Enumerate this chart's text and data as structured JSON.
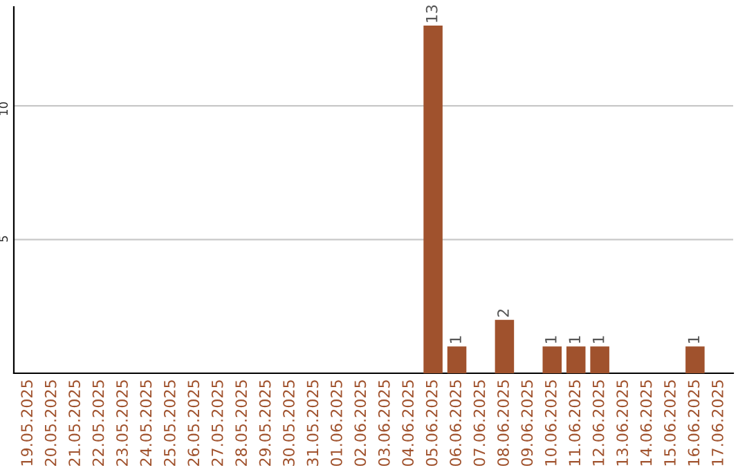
{
  "chart_data": {
    "type": "bar",
    "categories": [
      "19.05.2025",
      "20.05.2025",
      "21.05.2025",
      "22.05.2025",
      "23.05.2025",
      "24.05.2025",
      "25.05.2025",
      "26.05.2025",
      "27.05.2025",
      "28.05.2025",
      "29.05.2025",
      "30.05.2025",
      "31.05.2025",
      "01.06.2025",
      "02.06.2025",
      "03.06.2025",
      "04.06.2025",
      "05.06.2025",
      "06.06.2025",
      "07.06.2025",
      "08.06.2025",
      "09.06.2025",
      "10.06.2025",
      "11.06.2025",
      "12.06.2025",
      "13.06.2025",
      "14.06.2025",
      "15.06.2025",
      "16.06.2025",
      "17.06.2025"
    ],
    "values": [
      0,
      0,
      0,
      0,
      0,
      0,
      0,
      0,
      0,
      0,
      0,
      0,
      0,
      0,
      0,
      0,
      0,
      13,
      1,
      0,
      2,
      0,
      1,
      1,
      1,
      0,
      0,
      0,
      1,
      0
    ],
    "value_labels": [
      null,
      null,
      null,
      null,
      null,
      null,
      null,
      null,
      null,
      null,
      null,
      null,
      null,
      null,
      null,
      null,
      null,
      "13",
      "1",
      null,
      "2",
      null,
      "1",
      "1",
      "1",
      null,
      null,
      null,
      "1",
      null
    ],
    "color": "#a0522d",
    "ylim": [
      0,
      13.7
    ],
    "yticks": [
      5,
      10
    ],
    "grid": "y",
    "legend": false
  }
}
